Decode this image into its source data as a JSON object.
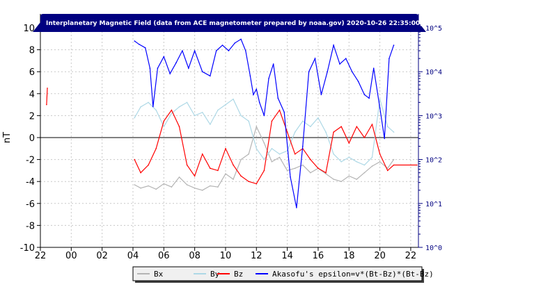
{
  "chart_data": {
    "type": "line",
    "title": "Interplanetary Magnetic Field (data from ACE magnetometer prepared by noaa.gov) 2020-10-26 22:35:00, UTC",
    "ylabel": "nT",
    "xlabel": "",
    "ylim": [
      -10,
      10
    ],
    "xlim": [
      22,
      46.5
    ],
    "x_tick_labels": [
      "22",
      "00",
      "02",
      "04",
      "06",
      "08",
      "10",
      "12",
      "14",
      "16",
      "18",
      "20",
      "22"
    ],
    "y_tick_labels": [
      "10",
      "8",
      "6",
      "4",
      "2",
      "0",
      "-2",
      "-4",
      "-6",
      "-8",
      "-10"
    ],
    "y2_scale": "log",
    "y2_tick_labels": [
      "10^5",
      "10^4",
      "10^3",
      "10^2",
      "10^1",
      "10^0"
    ],
    "grid": true,
    "legend_position": "bottom",
    "colors": {
      "bx": "#b4b4b4",
      "by": "#add8e6",
      "bz": "#ff0000",
      "epsilon": "#0000ff",
      "title_bar": "#000080",
      "right_axis": "#000080"
    },
    "series": [
      {
        "name": "Bx",
        "x": [
          28.1,
          28.5,
          29,
          29.5,
          30,
          30.5,
          31,
          31.5,
          32,
          32.5,
          33,
          33.5,
          34,
          34.5,
          35,
          35.5,
          36,
          36.5,
          37,
          37.5,
          38,
          38.5,
          39,
          39.5,
          40,
          40.5,
          41,
          41.5,
          42,
          42.5,
          43,
          43.5,
          44,
          44.5,
          44.9
        ],
        "values": [
          -4.3,
          -4.6,
          -4.4,
          -4.7,
          -4.2,
          -4.5,
          -3.6,
          -4.3,
          -4.6,
          -4.8,
          -4.4,
          -4.5,
          -3.3,
          -3.8,
          -2.0,
          -1.5,
          1.0,
          -0.5,
          -2.2,
          -1.8,
          -3.0,
          -2.8,
          -2.5,
          -3.2,
          -2.8,
          -3.3,
          -3.8,
          -4.0,
          -3.5,
          -3.8,
          -3.2,
          -2.6,
          -2.2,
          -2.8,
          -2.0
        ]
      },
      {
        "name": "By",
        "x": [
          28.1,
          28.5,
          29,
          29.5,
          30,
          30.5,
          31,
          31.5,
          32,
          32.5,
          33,
          33.5,
          34,
          34.5,
          35,
          35.5,
          36,
          36.5,
          37,
          37.5,
          38,
          38.5,
          39,
          39.5,
          40,
          40.5,
          41,
          41.5,
          42,
          42.5,
          43,
          43.5,
          44,
          44.5,
          44.9
        ],
        "values": [
          1.8,
          2.8,
          3.2,
          2.5,
          1.0,
          2.2,
          2.8,
          3.2,
          2.0,
          2.3,
          1.2,
          2.5,
          3.0,
          3.5,
          2.0,
          1.5,
          -1.0,
          -2.0,
          -1.0,
          -1.5,
          -1.2,
          0.5,
          1.5,
          1.0,
          1.8,
          0.5,
          -1.5,
          -2.2,
          -1.8,
          -2.2,
          -2.5,
          -1.8,
          3.5,
          1.0,
          0.5
        ]
      },
      {
        "name": "Bz",
        "x": [
          22.4,
          22.45,
          28.1,
          28.5,
          29,
          29.5,
          30,
          30.5,
          31,
          31.5,
          32,
          32.5,
          33,
          33.5,
          34,
          34.5,
          35,
          35.5,
          36,
          36.5,
          37,
          37.5,
          38,
          38.5,
          39,
          39.5,
          40,
          40.5,
          41,
          41.5,
          42,
          42.5,
          43,
          43.5,
          44,
          44.5,
          44.9,
          46.4
        ],
        "values": [
          3.0,
          4.5,
          -2.0,
          -3.2,
          -2.5,
          -1.0,
          1.5,
          2.5,
          1.0,
          -2.5,
          -3.5,
          -1.5,
          -2.8,
          -3.0,
          -1.0,
          -2.5,
          -3.5,
          -4.0,
          -4.2,
          -3.0,
          1.5,
          2.5,
          0.5,
          -1.5,
          -1.0,
          -2.0,
          -2.8,
          -3.2,
          0.5,
          1.0,
          -0.5,
          1.0,
          0.0,
          1.2,
          -1.5,
          -3.0,
          -2.5,
          -2.5
        ]
      },
      {
        "name": "Akasofu's epsilon=v*(Bt-Bz)*(Bt-Bz)",
        "x": [
          28.1,
          28.4,
          28.8,
          29.1,
          29.3,
          29.6,
          30,
          30.4,
          30.8,
          31.2,
          31.6,
          32,
          32.5,
          33,
          33.4,
          33.8,
          34.2,
          34.6,
          35,
          35.3,
          35.6,
          35.8,
          36,
          36.2,
          36.5,
          36.8,
          37.1,
          37.4,
          37.8,
          38.2,
          38.6,
          39,
          39.4,
          39.8,
          40.2,
          40.6,
          41,
          41.4,
          41.8,
          42.2,
          42.6,
          43,
          43.3,
          43.6,
          44,
          44.3,
          44.6,
          44.9
        ],
        "values": [
          50000,
          42000,
          35000,
          12000,
          1600,
          12000,
          22000,
          9000,
          16000,
          30000,
          12000,
          30000,
          10000,
          8000,
          30000,
          40000,
          30000,
          45000,
          55000,
          30000,
          8000,
          3000,
          4000,
          2000,
          1000,
          7000,
          15000,
          2500,
          1200,
          40,
          8,
          200,
          10000,
          20000,
          3000,
          10000,
          40000,
          15000,
          20000,
          10000,
          6000,
          3000,
          2500,
          12000,
          1500,
          300,
          20000,
          40000
        ]
      }
    ]
  }
}
